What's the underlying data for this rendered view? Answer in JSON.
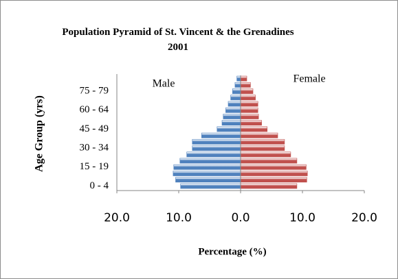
{
  "chart_data": {
    "type": "pyramid",
    "title": "Population Pyramid of St. Vincent & the Grenadines 2001",
    "x_label": "Percentage (%)",
    "y_label": "Age Group (yrs)",
    "categories": [
      "0 - 4",
      null,
      null,
      "15 - 19",
      null,
      null,
      "30 - 34",
      null,
      null,
      "45 - 49",
      null,
      null,
      "60 - 64",
      null,
      null,
      "75 - 79",
      null,
      null
    ],
    "series": [
      {
        "name": "Male",
        "color": "#4f81bd",
        "side": "left",
        "values": [
          9.7,
          10.5,
          10.9,
          10.8,
          9.8,
          8.7,
          7.8,
          7.8,
          6.3,
          3.8,
          3.0,
          2.8,
          2.4,
          2.0,
          1.6,
          1.3,
          0.9,
          0.6
        ]
      },
      {
        "name": "Female",
        "color": "#c0504d",
        "side": "right",
        "values": [
          9.1,
          10.7,
          10.8,
          10.6,
          9.1,
          8.1,
          7.1,
          7.1,
          6.0,
          4.3,
          3.4,
          2.9,
          2.8,
          2.8,
          2.4,
          2.0,
          1.6,
          1.0
        ]
      }
    ],
    "xlim": [
      -20,
      20
    ],
    "xticks": [
      {
        "value": -20,
        "label": "20.0"
      },
      {
        "value": -10,
        "label": "10.0"
      },
      {
        "value": 0,
        "label": "0.0"
      },
      {
        "value": 10,
        "label": "10.0"
      },
      {
        "value": 20,
        "label": "20.0"
      }
    ]
  }
}
